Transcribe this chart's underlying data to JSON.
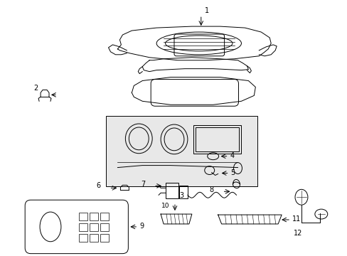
{
  "background_color": "#ffffff",
  "line_color": "#000000",
  "gray_fill": "#d8d8d8"
}
